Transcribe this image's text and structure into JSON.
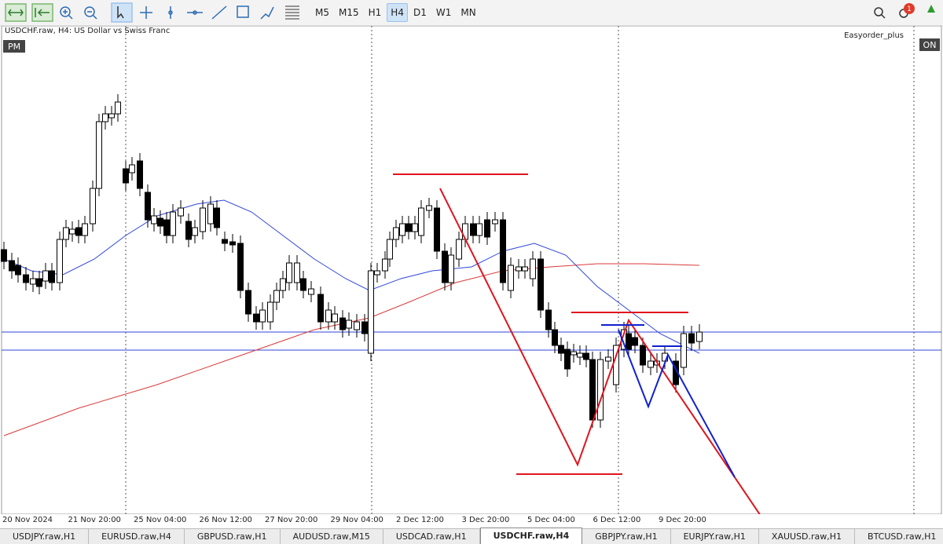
{
  "toolbar": {
    "timeframes": [
      "M5",
      "M15",
      "H1",
      "H4",
      "D1",
      "W1",
      "MN"
    ],
    "active_timeframe": "H4",
    "notifications": 1
  },
  "chart": {
    "symbol_label": "USDCHF.raw, H4:  US Dollar vs Swiss Franc",
    "session_badge": "PM",
    "expert": "Easyorder_plus",
    "status": "ON",
    "x_labels": [
      "20 Nov 2024",
      "21 Nov 20:00",
      "25 Nov 04:00",
      "26 Nov 12:00",
      "27 Nov 20:00",
      "29 Nov 04:00",
      "2 Dec 12:00",
      "3 Dec 20:00",
      "5 Dec 04:00",
      "6 Dec 12:00",
      "9 Dec 20:00"
    ]
  },
  "tabs": {
    "items": [
      "USDJPY.raw,H1",
      "EURUSD.raw,H4",
      "GBPUSD.raw,H1",
      "AUDUSD.raw,M15",
      "USDCAD.raw,H1",
      "USDCHF.raw,H4",
      "GBPJPY.raw,H1",
      "EURJPY.raw,H1",
      "XAUUSD.raw,H1",
      "BTCUSD.raw,H1"
    ],
    "active": "USDCHF.raw,H4"
  }
}
